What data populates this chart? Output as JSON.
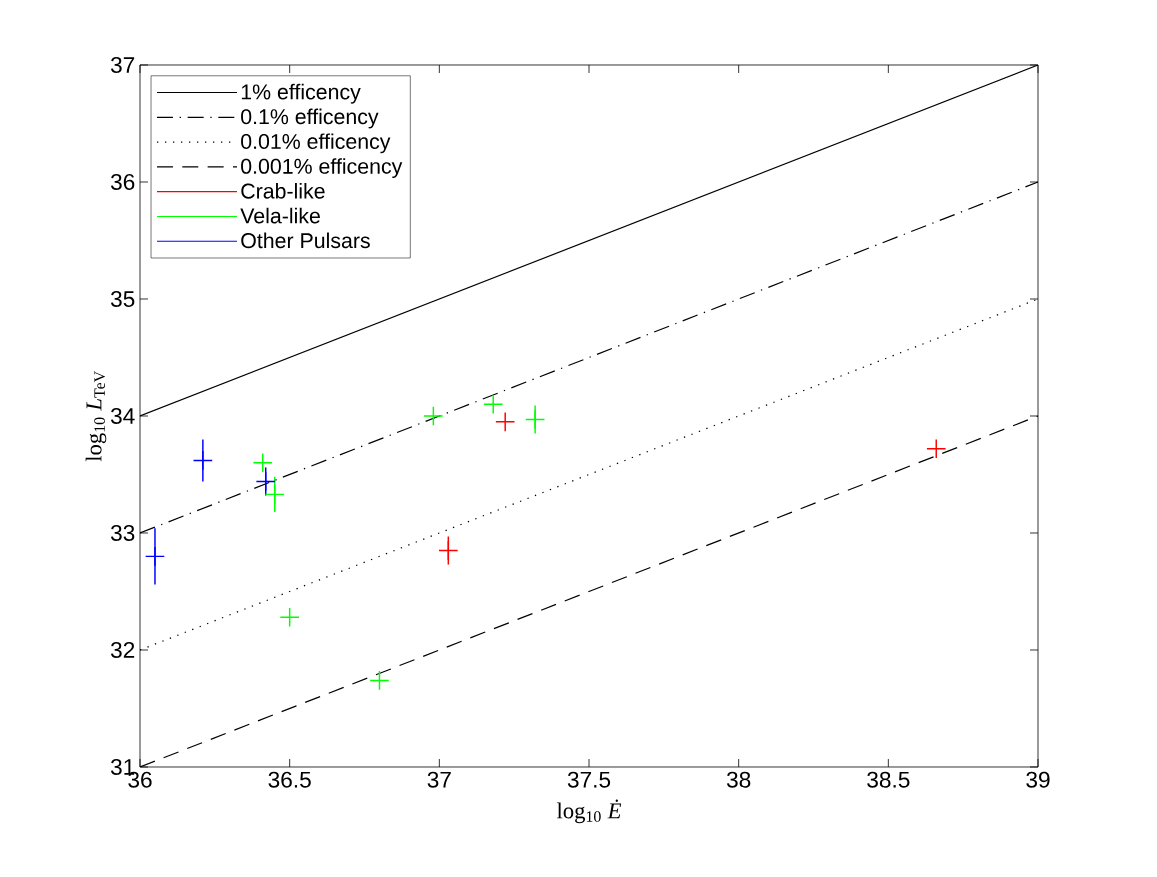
{
  "chart_data": {
    "type": "scatter",
    "xlabel": "log$_{10}$ *Ė*",
    "ylabel": "log$_{10}$ *L*$_{TeV}$",
    "xlim": [
      36,
      39
    ],
    "ylim": [
      31,
      37
    ],
    "xticks": [
      36,
      36.5,
      37,
      37.5,
      38,
      38.5,
      39
    ],
    "yticks": [
      31,
      32,
      33,
      34,
      35,
      36,
      37
    ],
    "grid": false,
    "legend": "top left",
    "marker": "cross",
    "series": [
      {
        "name": "1% efficency",
        "type": "line",
        "color": "#000000",
        "line_style": "solid",
        "marker": "none",
        "x": [
          36,
          39
        ],
        "values": [
          34,
          37
        ]
      },
      {
        "name": "0.1% efficency",
        "type": "line",
        "color": "#000000",
        "line_style": "dashdot",
        "marker": "none",
        "x": [
          36,
          39
        ],
        "values": [
          33,
          36
        ]
      },
      {
        "name": "0.01% efficency",
        "type": "line",
        "color": "#000000",
        "line_style": "dotted",
        "marker": "none",
        "x": [
          36,
          39
        ],
        "values": [
          32,
          35
        ]
      },
      {
        "name": "0.001% efficency",
        "type": "line",
        "color": "#000000",
        "line_style": "dashed",
        "marker": "none",
        "x": [
          36,
          39
        ],
        "values": [
          31,
          34
        ]
      },
      {
        "name": "Crab-like",
        "color": "#ff0000",
        "x": [
          37.22,
          37.03,
          38.66
        ],
        "values": [
          33.95,
          32.85,
          33.72
        ],
        "errors": [
          null,
          0.12,
          null
        ]
      },
      {
        "name": "Vela-like",
        "color": "#00ff00",
        "x": [
          36.41,
          36.45,
          36.5,
          36.8,
          36.98,
          37.18,
          37.32
        ],
        "values": [
          33.6,
          33.33,
          32.28,
          31.74,
          34.0,
          34.1,
          33.97
        ],
        "errors": [
          null,
          0.15,
          null,
          null,
          null,
          null,
          0.12
        ]
      },
      {
        "name": "Other Pulsars",
        "color": "#0000ff",
        "x": [
          36.05,
          36.21,
          36.42
        ],
        "values": [
          32.8,
          33.62,
          33.44
        ],
        "errors": [
          0.24,
          0.18,
          0.12
        ]
      }
    ]
  }
}
